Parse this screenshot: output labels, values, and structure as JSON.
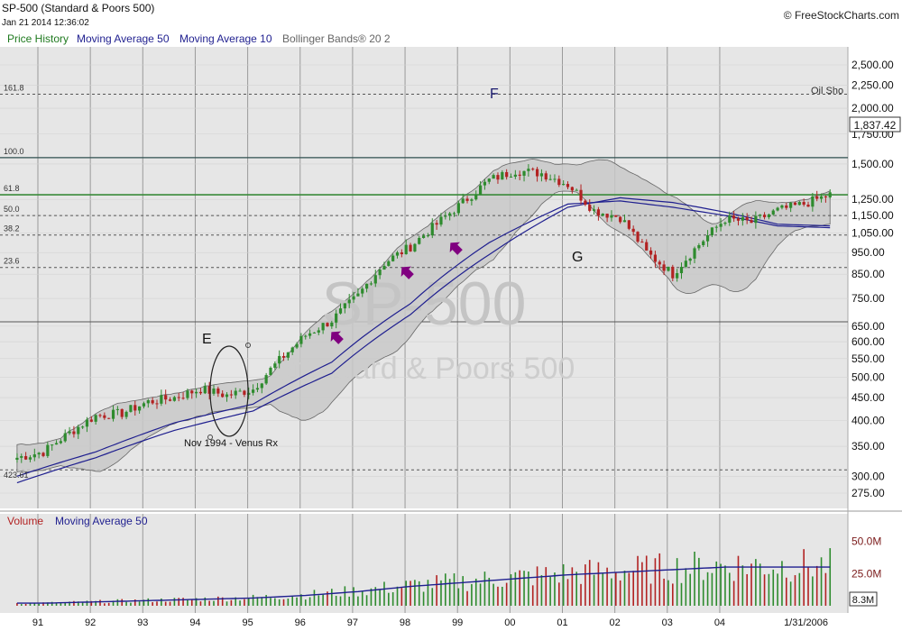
{
  "header": {
    "title": "SP-500 (Standard & Poors 500)",
    "datetime": "Jan 21 2014 12:36:02",
    "credit": "© FreeStockCharts.com"
  },
  "legend": {
    "price_history": "Price History",
    "ma50": "Moving Average 50",
    "ma10": "Moving Average 10",
    "bollinger": "Bollinger Bands® 20 2"
  },
  "watermark": {
    "symbol": "SP-500",
    "name": "Standard & Poors 500"
  },
  "annotations": {
    "e": "E",
    "f": "F",
    "g": "G",
    "venus": "Nov 1994 - Venus Rx",
    "oil": "Oil Sho",
    "last_date": "1/31/2006"
  },
  "colors": {
    "up": "#2e8b2e",
    "down": "#b22222",
    "ma": "#1f1f8f",
    "band": "#c8c8c8",
    "fib_green": "#3a8a3a",
    "arrow": "#800080",
    "price_box": "#ffffff"
  },
  "chart_data": [
    {
      "type": "candlestick",
      "title": "SP-500 (Standard & Poors 500)",
      "y_scale": "log",
      "ylim": [
        260,
        2700
      ],
      "x_tick_labels": [
        "91",
        "92",
        "93",
        "94",
        "95",
        "96",
        "97",
        "98",
        "99",
        "00",
        "01",
        "02",
        "03",
        "04"
      ],
      "y_tick_labels": [
        "2,500.00",
        "2,250.00",
        "2,000.00",
        "1,750.00",
        "1,500.00",
        "1,250.00",
        "1,150.00",
        "1,050.00",
        "950.00",
        "850.00",
        "750.00",
        "650.00",
        "600.00",
        "550.00",
        "500.00",
        "450.00",
        "400.00",
        "350.00",
        "300.00",
        "275.00"
      ],
      "y_tick_values": [
        2500,
        2250,
        2000,
        1750,
        1500,
        1250,
        1150,
        1050,
        950,
        850,
        750,
        650,
        600,
        550,
        500,
        450,
        400,
        350,
        300,
        275
      ],
      "last_price_label": "1,837.42",
      "last_price": 1837.42,
      "low_label": "423.61",
      "fibonacci": [
        {
          "label": "161.8",
          "value": 2150
        },
        {
          "label": "100.0",
          "value": 1550
        },
        {
          "label": "61.8",
          "value": 1280
        },
        {
          "label": "50.0",
          "value": 1150
        },
        {
          "label": "38.2",
          "value": 1040
        },
        {
          "label": "23.6",
          "value": 880
        }
      ],
      "reference_lines": [
        310,
        665
      ],
      "series": [
        {
          "name": "Price History",
          "x_year": [
            1990.5,
            1991.0,
            1991.5,
            1992.0,
            1992.5,
            1993.0,
            1993.5,
            1994.0,
            1994.5,
            1995.0,
            1995.5,
            1996.0,
            1996.5,
            1997.0,
            1997.5,
            1998.0,
            1998.5,
            1999.0,
            1999.5,
            2000.0,
            2000.5,
            2001.0,
            2001.5,
            2002.0,
            2002.5,
            2003.0,
            2003.5,
            2004.0,
            2004.5,
            2005.0,
            2005.5,
            2006.0
          ],
          "values": [
            330,
            340,
            375,
            410,
            415,
            440,
            450,
            470,
            455,
            470,
            545,
            620,
            670,
            760,
            900,
            980,
            1100,
            1230,
            1380,
            1450,
            1430,
            1350,
            1180,
            1140,
            950,
            850,
            990,
            1130,
            1110,
            1180,
            1220,
            1280
          ]
        },
        {
          "name": "Moving Average 50",
          "x_year": [
            1990.5,
            1992.0,
            1993.5,
            1995.0,
            1996.5,
            1998.0,
            1999.5,
            2001.0,
            2002.0,
            2003.0,
            2004.0,
            2005.0,
            2006.0
          ],
          "values": [
            290,
            330,
            380,
            420,
            510,
            690,
            940,
            1200,
            1260,
            1230,
            1170,
            1100,
            1090
          ]
        },
        {
          "name": "Moving Average 10",
          "x_year": [
            1990.5,
            1992.0,
            1993.5,
            1995.0,
            1996.5,
            1998.0,
            1999.5,
            2001.0,
            2002.0,
            2003.0,
            2004.0,
            2005.0,
            2006.0
          ],
          "values": [
            300,
            340,
            395,
            435,
            540,
            730,
            1000,
            1220,
            1240,
            1200,
            1150,
            1090,
            1080
          ]
        }
      ]
    },
    {
      "type": "bar",
      "title": "Volume",
      "legend": [
        "Volume",
        "Moving Average 50"
      ],
      "y_tick_labels": [
        "50.0M",
        "25.0M"
      ],
      "y_tick_values": [
        50,
        25
      ],
      "last_value_label": "8.3M",
      "x_tick_labels": [
        "91",
        "92",
        "93",
        "94",
        "95",
        "96",
        "97",
        "98",
        "99",
        "00",
        "01",
        "02",
        "03",
        "04"
      ],
      "ma50_values_M": [
        2,
        3,
        4,
        5,
        6,
        8,
        11,
        15,
        18,
        21,
        24,
        26,
        28,
        30
      ]
    }
  ]
}
